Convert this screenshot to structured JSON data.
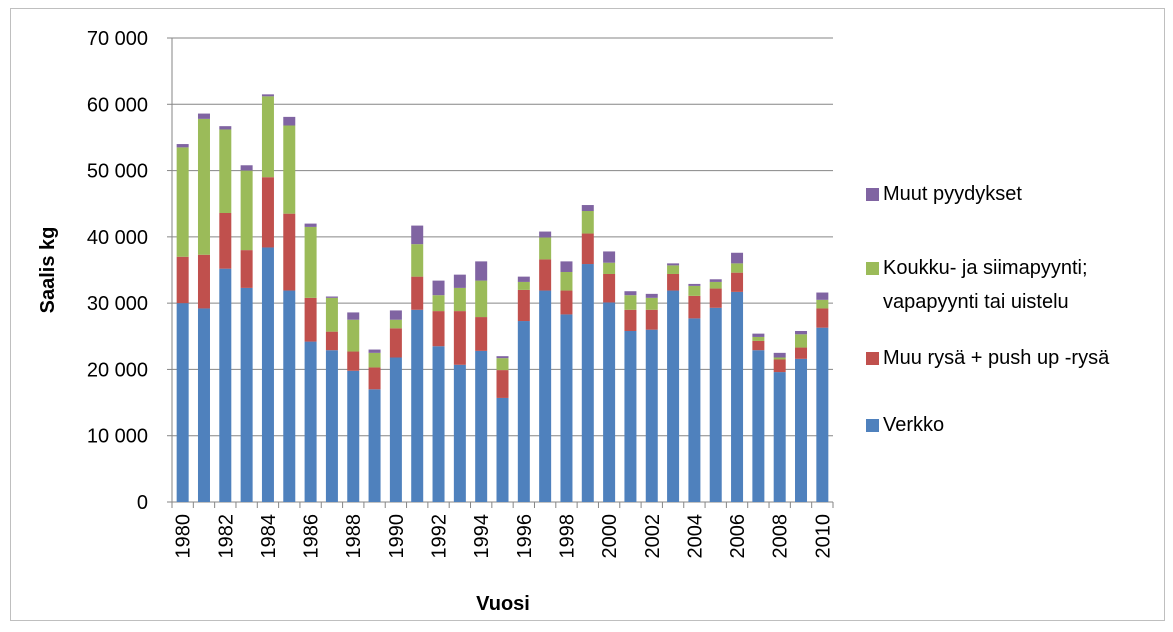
{
  "chart_data": {
    "type": "stacked-bar",
    "x_label": "Vuosi",
    "y_label": "Saalis kg",
    "categories": [
      "1980",
      null,
      "1982",
      null,
      "1984",
      null,
      "1986",
      null,
      "1988",
      null,
      "1990",
      null,
      "1992",
      null,
      "1994",
      null,
      "1996",
      null,
      "1998",
      null,
      "2000",
      null,
      "2002",
      null,
      "2004",
      null,
      "2006",
      null,
      "2008",
      null,
      "2010"
    ],
    "series": [
      {
        "name": "Verkko",
        "color": "#4f81bd",
        "values": [
          30000,
          29200,
          35200,
          32300,
          38400,
          31900,
          24200,
          22900,
          19800,
          17000,
          21800,
          29000,
          23500,
          20700,
          22800,
          15700,
          27300,
          31900,
          28300,
          35900,
          30100,
          25800,
          26000,
          31900,
          27700,
          29300,
          31700,
          22900,
          19600,
          21600,
          26300
        ]
      },
      {
        "name": "Muu rysä + push up -rysä",
        "color": "#c0504d",
        "values": [
          7000,
          8100,
          8400,
          5700,
          10600,
          11600,
          6600,
          2800,
          2900,
          3300,
          4400,
          5000,
          5300,
          8100,
          5100,
          4200,
          4700,
          4700,
          3600,
          4600,
          4300,
          3200,
          3000,
          2500,
          3400,
          2900,
          2900,
          1400,
          1900,
          1700,
          2900
        ]
      },
      {
        "name": "Koukku- ja siimapyynti; vapapyynti tai uistelu",
        "color": "#9bbb59",
        "values": [
          16500,
          20500,
          12600,
          12000,
          12200,
          13300,
          10700,
          5100,
          4800,
          2200,
          1300,
          4900,
          2400,
          3500,
          5500,
          1800,
          1200,
          3300,
          2800,
          3400,
          1700,
          2200,
          1800,
          1300,
          1500,
          1000,
          1400,
          600,
          300,
          2000,
          1300
        ]
      },
      {
        "name": "Muut pyydykset",
        "color": "#8064a2",
        "values": [
          500,
          800,
          500,
          800,
          300,
          1300,
          500,
          200,
          1100,
          500,
          1400,
          2800,
          2200,
          2000,
          2900,
          300,
          800,
          900,
          1600,
          900,
          1700,
          600,
          600,
          300,
          300,
          400,
          1600,
          500,
          700,
          500,
          1100
        ]
      }
    ],
    "ylim": [
      0,
      70000
    ],
    "yticks": [
      {
        "value": 0,
        "label": "0"
      },
      {
        "value": 10000,
        "label": "10 000"
      },
      {
        "value": 20000,
        "label": "20 000"
      },
      {
        "value": 30000,
        "label": "30 000"
      },
      {
        "value": 40000,
        "label": "40 000"
      },
      {
        "value": 50000,
        "label": "50 000"
      },
      {
        "value": 60000,
        "label": "60 000"
      },
      {
        "value": 70000,
        "label": "70 000"
      }
    ],
    "grid": true,
    "legend": "right"
  }
}
